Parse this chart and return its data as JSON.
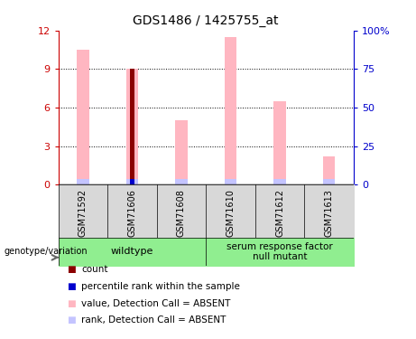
{
  "title": "GDS1486 / 1425755_at",
  "samples": [
    "GSM71592",
    "GSM71606",
    "GSM71608",
    "GSM71610",
    "GSM71612",
    "GSM71613"
  ],
  "pink_bars": [
    10.5,
    9.0,
    5.0,
    11.5,
    6.5,
    2.2
  ],
  "lavender_bars": [
    0.45,
    0.45,
    0.45,
    0.45,
    0.45,
    0.45
  ],
  "dark_red_bars": [
    0,
    9.0,
    0,
    0,
    0,
    0
  ],
  "blue_bars": [
    0,
    0.45,
    0,
    0,
    0,
    0
  ],
  "ylim_left": [
    0,
    12
  ],
  "ylim_right": [
    0,
    100
  ],
  "yticks_left": [
    0,
    3,
    6,
    9,
    12
  ],
  "yticks_right": [
    0,
    25,
    50,
    75,
    100
  ],
  "ytick_labels_right": [
    "0",
    "25",
    "50",
    "75",
    "100%"
  ],
  "groups": [
    {
      "label": "wildtype",
      "samples_range": [
        0,
        2
      ],
      "color": "#90EE90"
    },
    {
      "label": "serum response factor\nnull mutant",
      "samples_range": [
        3,
        5
      ],
      "color": "#90EE90"
    }
  ],
  "color_pink": "#FFB6C1",
  "color_lavender": "#C4C4FF",
  "color_dark_red": "#8B0000",
  "color_blue": "#0000CD",
  "left_axis_color": "#CC0000",
  "right_axis_color": "#0000CC",
  "bar_width": 0.25,
  "narrow_bar_width": 0.08,
  "legend_items": [
    {
      "color": "#8B0000",
      "label": "count"
    },
    {
      "color": "#0000CD",
      "label": "percentile rank within the sample"
    },
    {
      "color": "#FFB6C1",
      "label": "value, Detection Call = ABSENT"
    },
    {
      "color": "#C4C4FF",
      "label": "rank, Detection Call = ABSENT"
    }
  ],
  "sample_col_color": "#D8D8D8",
  "group_box_color": "#90EE90"
}
